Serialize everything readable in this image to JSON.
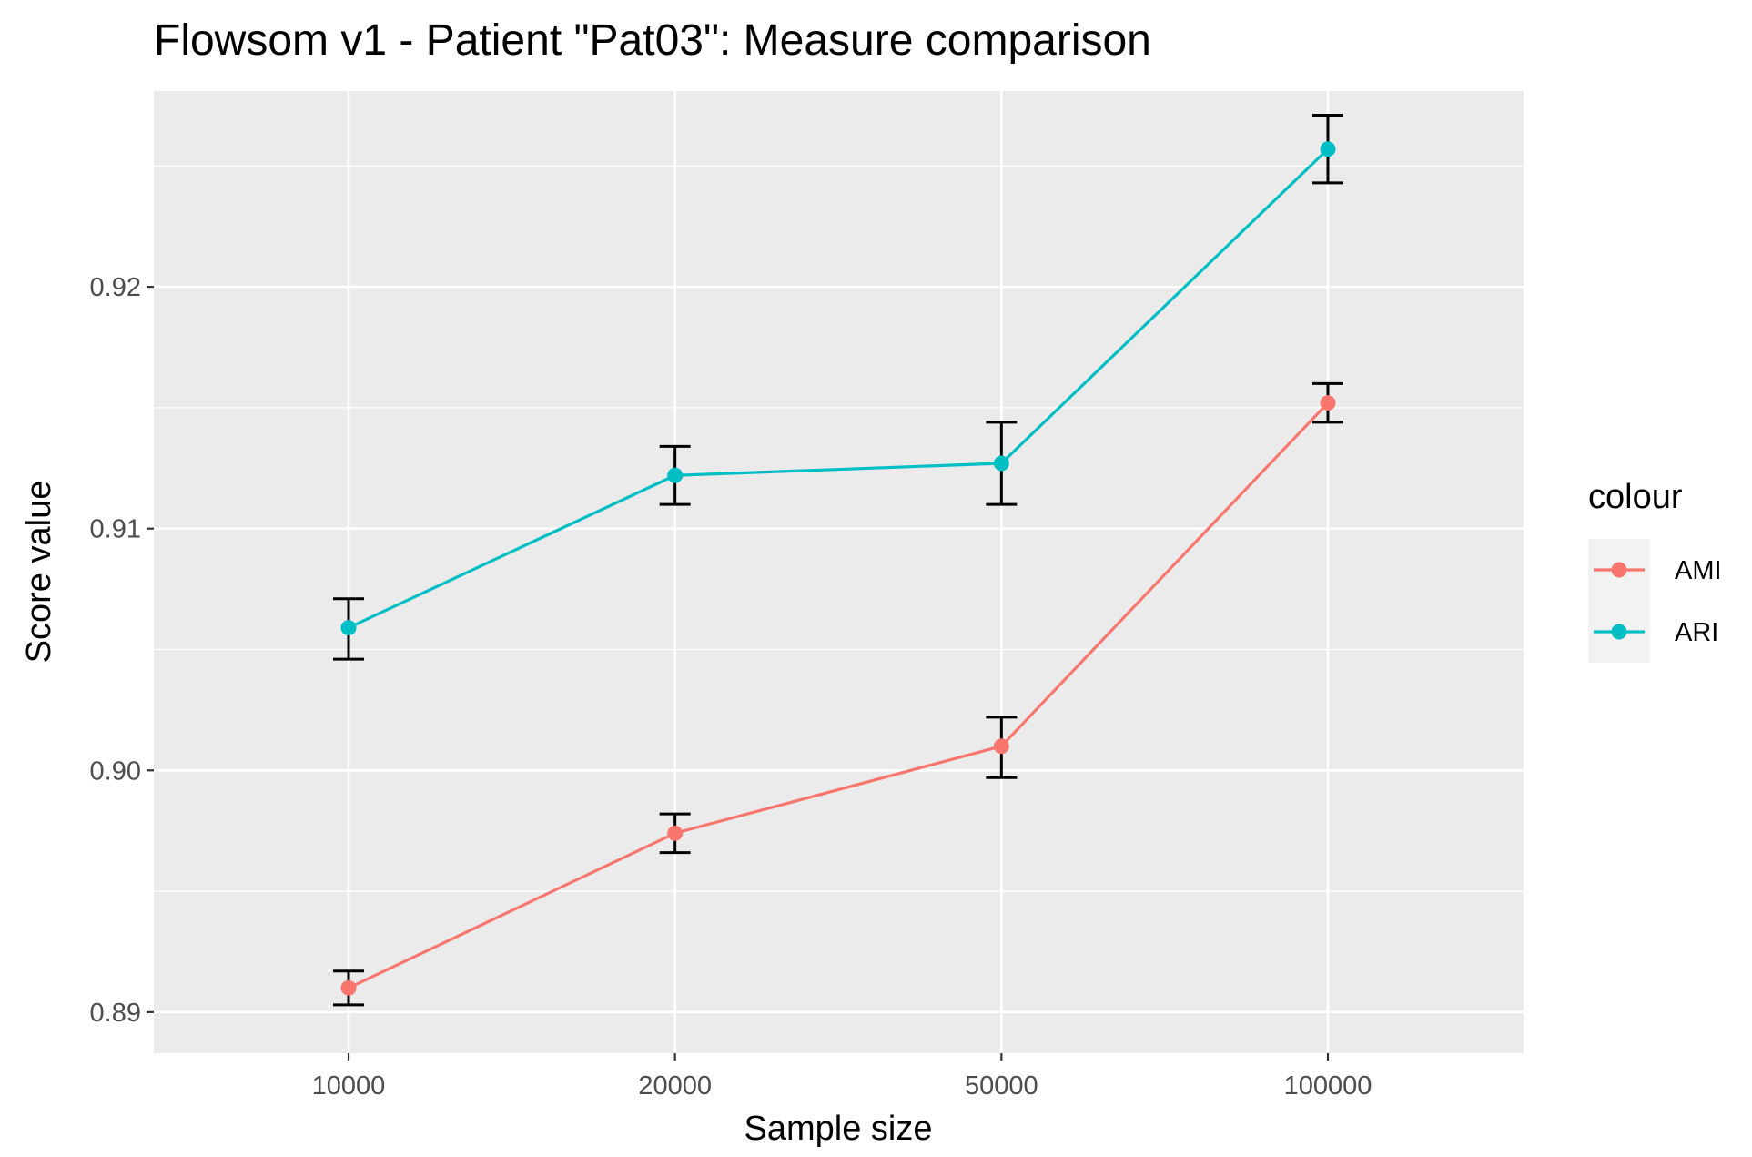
{
  "chart_data": {
    "type": "line",
    "title": "Flowsom v1 - Patient \"Pat03\": Measure comparison",
    "xlabel": "Sample size",
    "ylabel": "Score value",
    "categories": [
      "10000",
      "20000",
      "50000",
      "100000"
    ],
    "x_scale": "discrete",
    "ylim": [
      0.8883,
      0.9281
    ],
    "y_ticks": [
      0.89,
      0.9,
      0.91,
      0.92
    ],
    "y_tick_labels": [
      "0.89",
      "0.90",
      "0.91",
      "0.92"
    ],
    "grid": true,
    "legend": {
      "title": "colour",
      "position": "right"
    },
    "series": [
      {
        "name": "AMI",
        "color": "#F8766D",
        "values": [
          0.891,
          0.8974,
          0.901,
          0.9152
        ],
        "error_low": [
          0.8903,
          0.8966,
          0.8997,
          0.9144
        ],
        "error_high": [
          0.8917,
          0.8982,
          0.9022,
          0.916
        ]
      },
      {
        "name": "ARI",
        "color": "#00BFC4",
        "values": [
          0.9059,
          0.9122,
          0.9127,
          0.9257
        ],
        "error_low": [
          0.9046,
          0.911,
          0.911,
          0.9243
        ],
        "error_high": [
          0.9071,
          0.9134,
          0.9144,
          0.9271
        ]
      }
    ],
    "panel_color": "#EBEBEB",
    "error_bar_color": "#000000"
  }
}
